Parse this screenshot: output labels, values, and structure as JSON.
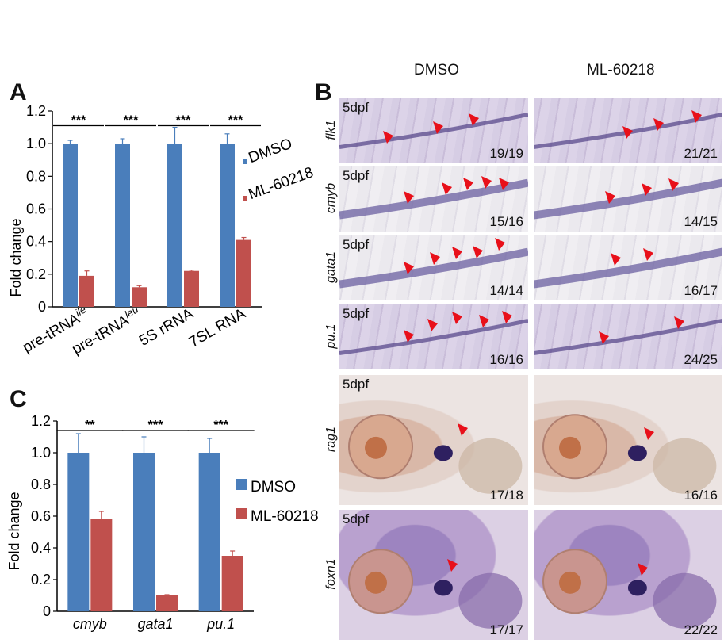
{
  "panels": {
    "A": "A",
    "B": "B",
    "C": "C"
  },
  "chartA": {
    "ylabel": "Fold change",
    "ticks": [
      "0",
      "0.2",
      "0.4",
      "0.6",
      "0.8",
      "1.0",
      "1.2"
    ],
    "categories": [
      {
        "base": "pre-tRNA",
        "sup": "ile"
      },
      {
        "base": "pre-tRNA",
        "sup": "leu"
      },
      {
        "base": "5S rRNA",
        "sup": ""
      },
      {
        "base": "7SL RNA",
        "sup": ""
      }
    ],
    "sig": [
      "***",
      "***",
      "***",
      "***"
    ],
    "legend": [
      "DMSO",
      "ML-60218"
    ]
  },
  "chartC": {
    "ylabel": "Fold change",
    "ticks": [
      "0",
      "0.2",
      "0.4",
      "0.6",
      "0.8",
      "1.0",
      "1.2"
    ],
    "categories": [
      "cmyb",
      "gata1",
      "pu.1"
    ],
    "sig": [
      "**",
      "***",
      "***"
    ],
    "legend": [
      "DMSO",
      "ML-60218"
    ]
  },
  "chart_data": [
    {
      "type": "bar",
      "categories": [
        "pre-tRNAile",
        "pre-tRNAleu",
        "5S rRNA",
        "7SL RNA"
      ],
      "series": [
        {
          "name": "DMSO",
          "values": [
            1.0,
            1.0,
            1.0,
            1.0
          ],
          "errors": [
            0.02,
            0.03,
            0.1,
            0.06
          ]
        },
        {
          "name": "ML-60218",
          "values": [
            0.19,
            0.12,
            0.22,
            0.41
          ],
          "errors": [
            0.03,
            0.01,
            0.005,
            0.015
          ]
        }
      ],
      "ylabel": "Fold change",
      "ylim": [
        0,
        1.2
      ],
      "colors": [
        "#4a7ebb",
        "#c0504d"
      ],
      "legend_position": "right"
    },
    {
      "type": "bar",
      "categories": [
        "cmyb",
        "gata1",
        "pu.1"
      ],
      "series": [
        {
          "name": "DMSO",
          "values": [
            1.0,
            1.0,
            1.0
          ],
          "errors": [
            0.12,
            0.1,
            0.09
          ]
        },
        {
          "name": "ML-60218",
          "values": [
            0.58,
            0.1,
            0.35
          ],
          "errors": [
            0.05,
            0.005,
            0.03
          ]
        }
      ],
      "ylabel": "Fold change",
      "ylim": [
        0,
        1.2
      ],
      "colors": [
        "#4a7ebb",
        "#c0504d"
      ],
      "legend_position": "right"
    }
  ],
  "panelB": {
    "conditions": [
      "DMSO",
      "ML-60218"
    ],
    "stage": "5dpf",
    "rows": [
      {
        "gene": "flk1",
        "ratios": [
          "19/19",
          "21/21"
        ]
      },
      {
        "gene": "cmyb",
        "ratios": [
          "15/16",
          "14/15"
        ]
      },
      {
        "gene": "gata1",
        "ratios": [
          "14/14",
          "16/17"
        ]
      },
      {
        "gene": "pu.1",
        "ratios": [
          "16/16",
          "24/25"
        ]
      },
      {
        "gene": "rag1",
        "ratios": [
          "17/18",
          "16/16"
        ]
      },
      {
        "gene": "foxn1",
        "ratios": [
          "17/17",
          "22/22"
        ]
      }
    ]
  },
  "colors": {
    "dmso": "#4a7ebb",
    "ml": "#c0504d",
    "arrow": "#e8101a"
  }
}
